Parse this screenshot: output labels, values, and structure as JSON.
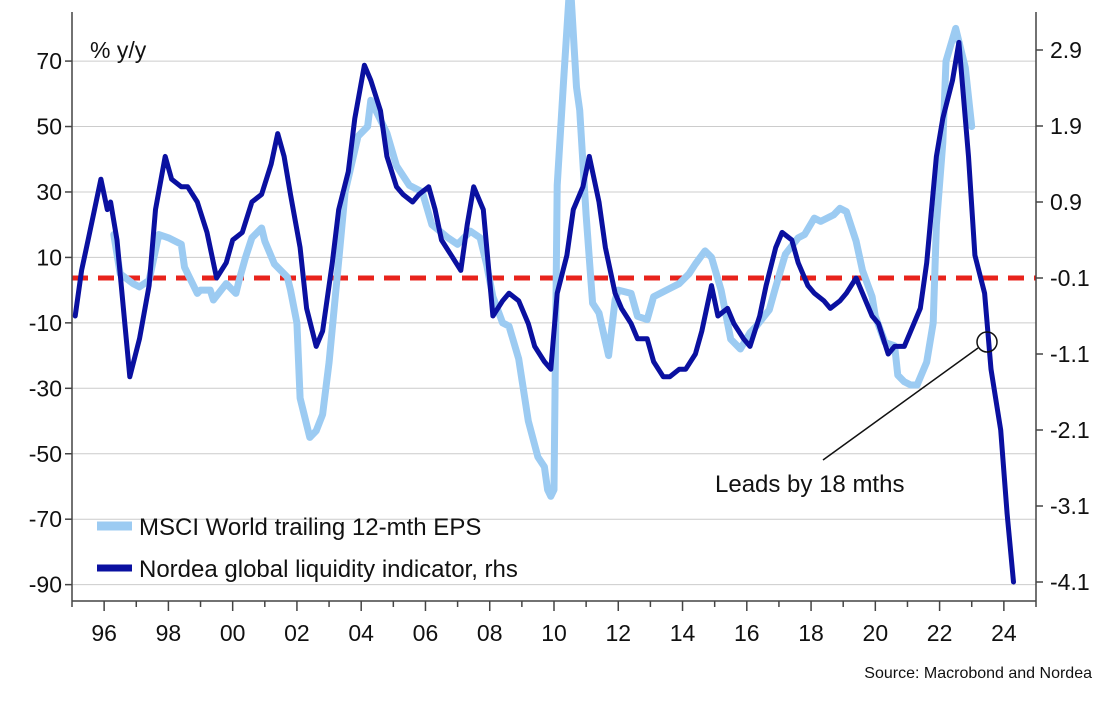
{
  "chart_data": {
    "type": "line",
    "left_axis_unit": "% y/y",
    "source": "Source: Macrobond and Nordea",
    "annotation": "Leads by 18 mths",
    "x_ticks": [
      "96",
      "98",
      "00",
      "02",
      "04",
      "06",
      "08",
      "10",
      "12",
      "14",
      "16",
      "18",
      "20",
      "22",
      "24"
    ],
    "x_tick_years": [
      1996,
      1998,
      2000,
      2002,
      2004,
      2006,
      2008,
      2010,
      2012,
      2014,
      2016,
      2018,
      2020,
      2022,
      2024
    ],
    "xlim": [
      1995.0,
      2025.0
    ],
    "ylim_left": [
      -95,
      85
    ],
    "ylim_right": [
      -4.35,
      3.4
    ],
    "y_ticks_left": [
      70,
      50,
      30,
      10,
      -10,
      -30,
      -50,
      -70,
      -90
    ],
    "y_ticks_right": [
      2.9,
      1.9,
      0.9,
      -0.1,
      -1.1,
      -2.1,
      -3.1,
      -4.1
    ],
    "grid": true,
    "legend_position": "bottom-left",
    "reference_line": {
      "axis": "right",
      "value": -0.1,
      "color": "#e8231c",
      "style": "dashed"
    },
    "series": [
      {
        "name": "MSCI World trailing 12-mth EPS",
        "axis": "left",
        "color": "#9ccbf2",
        "x": [
          1996.3,
          1996.5,
          1996.9,
          1997.1,
          1997.4,
          1997.7,
          1998.0,
          1998.4,
          1998.5,
          1998.9,
          1999.0,
          1999.3,
          1999.4,
          1999.8,
          2000.1,
          2000.2,
          2000.4,
          2000.6,
          2000.9,
          2001.0,
          2001.3,
          2001.7,
          2001.8,
          2002.0,
          2002.1,
          2002.4,
          2002.6,
          2002.8,
          2003.0,
          2003.3,
          2003.5,
          2003.9,
          2004.2,
          2004.3,
          2004.6,
          2004.8,
          2005.1,
          2005.5,
          2005.9,
          2006.2,
          2006.7,
          2007.0,
          2007.4,
          2007.7,
          2007.9,
          2008.1,
          2008.4,
          2008.6,
          2008.9,
          2009.2,
          2009.5,
          2009.7,
          2009.8,
          2009.9,
          2010.0,
          2010.1,
          2010.3,
          2010.5,
          2010.7,
          2010.8,
          2011.0,
          2011.2,
          2011.4,
          2011.7,
          2011.9,
          2012.0,
          2012.4,
          2012.6,
          2012.9,
          2013.1,
          2013.5,
          2013.9,
          2014.2,
          2014.4,
          2014.7,
          2014.9,
          2015.2,
          2015.5,
          2015.8,
          2016.1,
          2016.3,
          2016.7,
          2016.9,
          2017.2,
          2017.6,
          2017.8,
          2018.1,
          2018.3,
          2018.7,
          2018.9,
          2019.1,
          2019.4,
          2019.6,
          2019.9,
          2020.0,
          2020.3,
          2020.6,
          2020.7,
          2020.9,
          2021.1,
          2021.3,
          2021.6,
          2021.8,
          2021.9,
          2022.1,
          2022.2,
          2022.5,
          2022.8,
          2023.0
        ],
        "values": [
          17,
          5,
          2,
          1,
          3,
          17,
          16,
          14,
          7,
          -1,
          0,
          0,
          -3,
          2,
          -1,
          3,
          10,
          16,
          19,
          15,
          8,
          4,
          0,
          -10,
          -33,
          -45,
          -43,
          -38,
          -22,
          9,
          30,
          47,
          50,
          58,
          52,
          48,
          38,
          32,
          30,
          20,
          16,
          14,
          18,
          16,
          8,
          -2,
          -10,
          -11,
          -21,
          -40,
          -51,
          -54,
          -61,
          -63,
          -61,
          32,
          64,
          95,
          62,
          55,
          23,
          -4,
          -7,
          -20,
          -3,
          0,
          -1,
          -8,
          -9,
          -2,
          0,
          2,
          5,
          8,
          12,
          10,
          0,
          -15,
          -18,
          -13,
          -11,
          -6,
          1,
          11,
          16,
          17,
          22,
          21,
          23,
          25,
          24,
          15,
          6,
          -2,
          -8,
          -16,
          -17,
          -26,
          -28,
          -29,
          -29,
          -22,
          -10,
          20,
          45,
          70,
          80,
          68,
          50
        ]
      },
      {
        "name": "Nordea global liquidity indicator, rhs",
        "axis": "right",
        "color": "#0a10a0",
        "x": [
          1995.1,
          1995.3,
          1995.5,
          1995.7,
          1995.9,
          1996.1,
          1996.2,
          1996.4,
          1996.6,
          1996.8,
          1997.1,
          1997.4,
          1997.6,
          1997.9,
          1998.1,
          1998.4,
          1998.6,
          1998.9,
          1999.2,
          1999.5,
          1999.8,
          2000.0,
          2000.3,
          2000.6,
          2000.9,
          2001.2,
          2001.4,
          2001.6,
          2001.8,
          2002.1,
          2002.3,
          2002.6,
          2002.8,
          2003.1,
          2003.3,
          2003.6,
          2003.8,
          2004.1,
          2004.3,
          2004.6,
          2004.8,
          2005.1,
          2005.3,
          2005.6,
          2005.8,
          2006.1,
          2006.3,
          2006.5,
          2006.8,
          2007.1,
          2007.3,
          2007.5,
          2007.8,
          2008.1,
          2008.4,
          2008.6,
          2008.9,
          2009.2,
          2009.4,
          2009.7,
          2009.9,
          2010.1,
          2010.4,
          2010.6,
          2010.9,
          2011.1,
          2011.4,
          2011.6,
          2011.9,
          2012.1,
          2012.4,
          2012.6,
          2012.9,
          2013.1,
          2013.4,
          2013.6,
          2013.9,
          2014.1,
          2014.4,
          2014.6,
          2014.9,
          2015.1,
          2015.4,
          2015.6,
          2015.9,
          2016.1,
          2016.4,
          2016.6,
          2016.9,
          2017.1,
          2017.4,
          2017.6,
          2017.9,
          2018.1,
          2018.4,
          2018.6,
          2018.9,
          2019.1,
          2019.4,
          2019.6,
          2019.9,
          2020.1,
          2020.4,
          2020.6,
          2020.9,
          2021.1,
          2021.4,
          2021.6,
          2021.9,
          2022.1,
          2022.4,
          2022.6,
          2022.9,
          2023.1,
          2023.4,
          2023.6,
          2023.9,
          2024.1,
          2024.3
        ],
        "values": [
          -0.6,
          0.0,
          0.4,
          0.8,
          1.2,
          0.8,
          0.9,
          0.4,
          -0.5,
          -1.4,
          -0.9,
          -0.2,
          0.8,
          1.5,
          1.2,
          1.1,
          1.1,
          0.9,
          0.5,
          -0.1,
          0.1,
          0.4,
          0.5,
          0.9,
          1.0,
          1.4,
          1.8,
          1.5,
          1.0,
          0.3,
          -0.5,
          -1.0,
          -0.8,
          0.1,
          0.8,
          1.3,
          2.0,
          2.7,
          2.5,
          2.1,
          1.5,
          1.1,
          1.0,
          0.9,
          1.0,
          1.1,
          0.8,
          0.4,
          0.2,
          0.0,
          0.6,
          1.1,
          0.8,
          -0.6,
          -0.4,
          -0.3,
          -0.4,
          -0.7,
          -1.0,
          -1.2,
          -1.3,
          -0.3,
          0.2,
          0.8,
          1.1,
          1.5,
          0.9,
          0.3,
          -0.3,
          -0.5,
          -0.7,
          -0.9,
          -0.9,
          -1.2,
          -1.4,
          -1.4,
          -1.3,
          -1.3,
          -1.1,
          -0.8,
          -0.2,
          -0.6,
          -0.5,
          -0.7,
          -0.9,
          -1.0,
          -0.6,
          -0.2,
          0.3,
          0.5,
          0.4,
          0.1,
          -0.2,
          -0.3,
          -0.4,
          -0.5,
          -0.4,
          -0.3,
          -0.1,
          -0.3,
          -0.6,
          -0.7,
          -1.1,
          -1.0,
          -1.0,
          -0.8,
          -0.5,
          0.1,
          1.5,
          2.0,
          2.5,
          3.0,
          1.5,
          0.2,
          -0.3,
          -1.3,
          -2.1,
          -3.2,
          -4.1
        ]
      }
    ]
  }
}
